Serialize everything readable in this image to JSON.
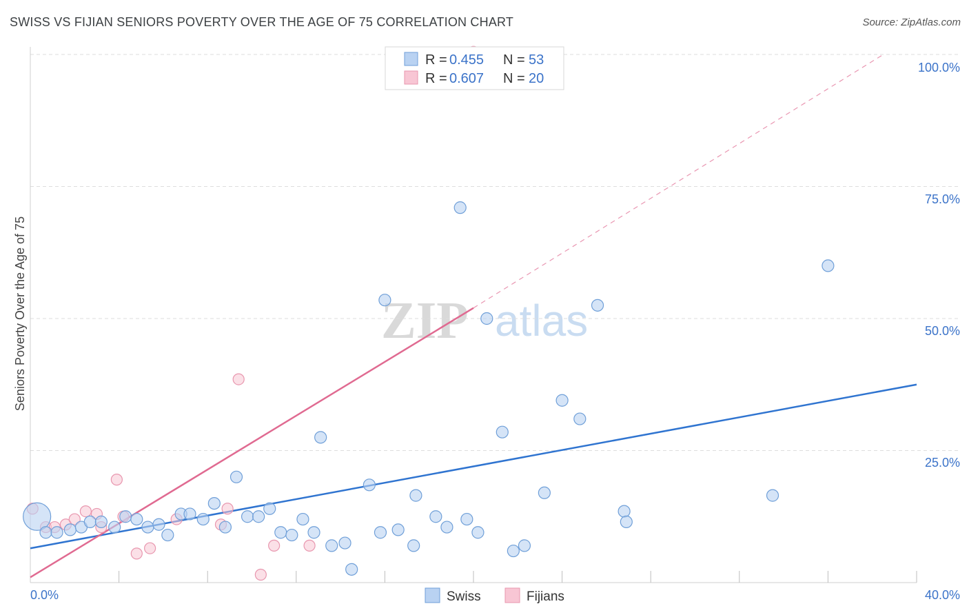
{
  "title": "SWISS VS FIJIAN SENIORS POVERTY OVER THE AGE OF 75 CORRELATION CHART",
  "source": "Source: ZipAtlas.com",
  "watermark": {
    "zip": "ZIP",
    "atlas": "atlas"
  },
  "legend": {
    "r_label": "R =",
    "n_label": "N =",
    "swiss": {
      "r": "0.455",
      "n": "53"
    },
    "fijians": {
      "r": "0.607",
      "n": "20"
    }
  },
  "bottom_legend": {
    "swiss": "Swiss",
    "fijians": "Fijians"
  },
  "colors": {
    "swiss_fill": "#b9d2f2",
    "swiss_stroke": "#6f9fd8",
    "swiss_line": "#2f74d0",
    "fijian_fill": "#f8c6d4",
    "fijian_stroke": "#e896ae",
    "fijian_line": "#e06a91",
    "tick": "#3b73c9",
    "grid": "#dddddd"
  },
  "chart_data": {
    "type": "scatter",
    "title": "SWISS VS FIJIAN SENIORS POVERTY OVER THE AGE OF 75 CORRELATION CHART",
    "xlabel": "",
    "ylabel": "Seniors Poverty Over the Age of 75",
    "xlim": [
      0,
      40
    ],
    "ylim": [
      0,
      100
    ],
    "x_tick_labels": [
      "0.0%",
      "40.0%"
    ],
    "y_tick_labels": [
      "25.0%",
      "50.0%",
      "75.0%",
      "100.0%"
    ],
    "y_ticks": [
      25,
      50,
      75,
      100
    ],
    "x_minor_ticks": [
      4,
      8,
      12,
      16,
      20,
      24,
      28,
      32,
      36,
      40
    ],
    "series": [
      {
        "name": "Swiss",
        "r": 0.455,
        "n": 53,
        "trend": {
          "x": [
            0,
            40
          ],
          "y": [
            6.5,
            37.5
          ],
          "style": "solid"
        },
        "points": [
          {
            "x": 0.3,
            "y": 12.5,
            "big": true
          },
          {
            "x": 0.7,
            "y": 9.5
          },
          {
            "x": 1.2,
            "y": 9.5
          },
          {
            "x": 1.8,
            "y": 10.0
          },
          {
            "x": 2.3,
            "y": 10.5
          },
          {
            "x": 2.7,
            "y": 11.5
          },
          {
            "x": 3.2,
            "y": 11.5
          },
          {
            "x": 3.8,
            "y": 10.5
          },
          {
            "x": 4.3,
            "y": 12.5
          },
          {
            "x": 4.8,
            "y": 12.0
          },
          {
            "x": 5.3,
            "y": 10.5
          },
          {
            "x": 5.8,
            "y": 11.0
          },
          {
            "x": 6.2,
            "y": 9.0
          },
          {
            "x": 6.8,
            "y": 13.0
          },
          {
            "x": 7.2,
            "y": 13.0
          },
          {
            "x": 7.8,
            "y": 12.0
          },
          {
            "x": 8.3,
            "y": 15.0
          },
          {
            "x": 8.8,
            "y": 10.5
          },
          {
            "x": 9.3,
            "y": 20.0
          },
          {
            "x": 9.8,
            "y": 12.5
          },
          {
            "x": 10.3,
            "y": 12.5
          },
          {
            "x": 10.8,
            "y": 14.0
          },
          {
            "x": 11.3,
            "y": 9.5
          },
          {
            "x": 11.8,
            "y": 9.0
          },
          {
            "x": 12.3,
            "y": 12.0
          },
          {
            "x": 12.8,
            "y": 9.5
          },
          {
            "x": 13.1,
            "y": 27.5
          },
          {
            "x": 13.6,
            "y": 7.0
          },
          {
            "x": 14.2,
            "y": 7.5
          },
          {
            "x": 14.5,
            "y": 2.5
          },
          {
            "x": 15.3,
            "y": 18.5
          },
          {
            "x": 15.8,
            "y": 9.5
          },
          {
            "x": 16.0,
            "y": 53.5
          },
          {
            "x": 16.6,
            "y": 10.0
          },
          {
            "x": 17.3,
            "y": 7.0
          },
          {
            "x": 17.4,
            "y": 16.5
          },
          {
            "x": 18.3,
            "y": 12.5
          },
          {
            "x": 18.8,
            "y": 10.5
          },
          {
            "x": 19.4,
            "y": 71.0
          },
          {
            "x": 19.7,
            "y": 12.0
          },
          {
            "x": 20.2,
            "y": 9.5
          },
          {
            "x": 20.6,
            "y": 50.0
          },
          {
            "x": 21.3,
            "y": 28.5
          },
          {
            "x": 21.8,
            "y": 6.0
          },
          {
            "x": 22.3,
            "y": 7.0
          },
          {
            "x": 23.2,
            "y": 17.0
          },
          {
            "x": 24.0,
            "y": 34.5
          },
          {
            "x": 24.8,
            "y": 31.0
          },
          {
            "x": 25.6,
            "y": 52.5
          },
          {
            "x": 26.8,
            "y": 13.5
          },
          {
            "x": 26.9,
            "y": 11.5
          },
          {
            "x": 33.5,
            "y": 16.5
          },
          {
            "x": 36.0,
            "y": 60.0
          }
        ]
      },
      {
        "name": "Fijians",
        "r": 0.607,
        "n": 20,
        "trend": {
          "x": [
            0,
            20
          ],
          "y": [
            1.0,
            52.0
          ],
          "style": "solid",
          "extended_to": [
            38.5,
            100
          ],
          "extended_style": "dashed"
        },
        "points": [
          {
            "x": 0.1,
            "y": 14.0
          },
          {
            "x": 0.7,
            "y": 10.5
          },
          {
            "x": 1.1,
            "y": 10.5
          },
          {
            "x": 1.6,
            "y": 11.0
          },
          {
            "x": 2.0,
            "y": 12.0
          },
          {
            "x": 2.5,
            "y": 13.5
          },
          {
            "x": 3.0,
            "y": 13.0
          },
          {
            "x": 3.2,
            "y": 10.5
          },
          {
            "x": 3.9,
            "y": 19.5
          },
          {
            "x": 4.2,
            "y": 12.5
          },
          {
            "x": 4.8,
            "y": 5.5
          },
          {
            "x": 5.4,
            "y": 6.5
          },
          {
            "x": 6.6,
            "y": 12.0
          },
          {
            "x": 8.6,
            "y": 11.0
          },
          {
            "x": 8.9,
            "y": 14.0
          },
          {
            "x": 9.4,
            "y": 38.5
          },
          {
            "x": 10.4,
            "y": 1.5
          },
          {
            "x": 11.0,
            "y": 7.0
          },
          {
            "x": 12.6,
            "y": 7.0
          },
          {
            "x": 20.0,
            "y": 100.5
          }
        ]
      }
    ]
  }
}
